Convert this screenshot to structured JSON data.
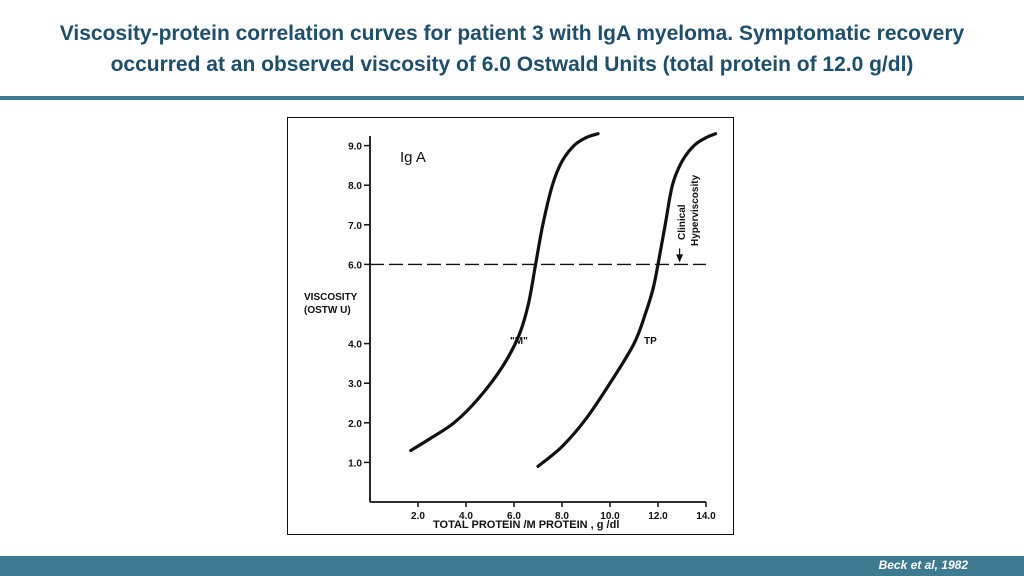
{
  "slide": {
    "title_line1": "Viscosity-protein correlation curves for patient 3 with IgA myeloma. Symptomatic recovery",
    "title_line2": "occurred at an observed viscosity of 6.0 Ostwald Units (total protein of 12.0 g/dl)",
    "citation": "Beck et al, 1982",
    "accent_color": "#3e7a90",
    "title_color": "#1f4e6b"
  },
  "chart_data": {
    "type": "line",
    "title": "",
    "panel_label": "Ig A",
    "xlabel": "TOTAL PROTEIN /M PROTEIN , g /dl",
    "ylabel_line1": "VISCOSITY",
    "ylabel_line2": "(OSTW U)",
    "xlim": [
      0,
      14.0
    ],
    "ylim": [
      0,
      9.5
    ],
    "x_ticks": [
      2.0,
      4.0,
      6.0,
      8.0,
      10.0,
      12.0,
      14.0
    ],
    "x_tick_labels": [
      "2.0",
      "4.0",
      "6.0",
      "8.0",
      "10.0",
      "12.0",
      "14.0"
    ],
    "y_ticks": [
      1.0,
      2.0,
      3.0,
      4.0,
      6.0,
      7.0,
      8.0,
      9.0
    ],
    "y_tick_labels": [
      "1.0",
      "2.0",
      "3.0",
      "4.0",
      "6.0",
      "7.0",
      "8.0",
      "9.0"
    ],
    "grid": false,
    "series": [
      {
        "name": "\"M\"",
        "x": [
          1.7,
          2.5,
          3.5,
          4.5,
          5.5,
          6.2,
          6.6,
          6.9,
          7.2,
          7.6,
          8.0,
          8.5,
          9.0,
          9.5
        ],
        "y": [
          1.3,
          1.6,
          2.0,
          2.6,
          3.4,
          4.2,
          5.0,
          6.0,
          7.0,
          8.0,
          8.6,
          9.0,
          9.2,
          9.3
        ]
      },
      {
        "name": "TP",
        "x": [
          7.0,
          8.0,
          9.0,
          10.0,
          11.0,
          11.5,
          11.8,
          12.0,
          12.3,
          12.6,
          13.0,
          13.5,
          14.0,
          14.4
        ],
        "y": [
          0.9,
          1.4,
          2.1,
          3.0,
          4.0,
          4.8,
          5.4,
          6.0,
          7.0,
          8.0,
          8.6,
          9.0,
          9.2,
          9.3
        ]
      }
    ],
    "reference_line": {
      "y": 6.0,
      "style": "dashed"
    },
    "annotation": {
      "text_line1": "Clinical",
      "text_line2": "Hyperviscosity",
      "x": 12.9
    }
  }
}
